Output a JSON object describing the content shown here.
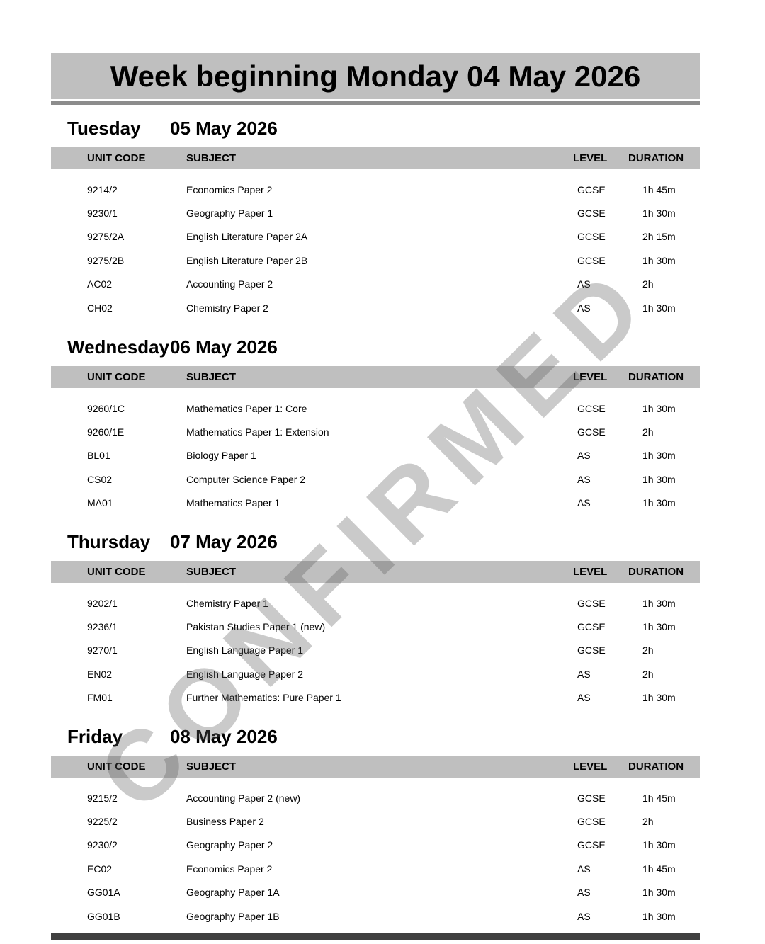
{
  "page": {
    "title": "Week beginning Monday 04 May 2026"
  },
  "watermark": {
    "text": "CONFIRMED"
  },
  "columns": {
    "unit_code": "UNIT CODE",
    "subject": "SUBJECT",
    "level": "LEVEL",
    "duration": "DURATION"
  },
  "colors": {
    "header_bar_gray": "#bfbfbf",
    "title_divider_gray": "#8c8c8c",
    "bottom_bar_gray": "#404040",
    "text": "#000000",
    "watermark": "rgba(90,90,90,0.32)"
  },
  "sections": [
    {
      "day": "Tuesday",
      "date": "05 May 2026",
      "rows": [
        {
          "unit_code": "9214/2",
          "subject": "Economics Paper 2",
          "level": "GCSE",
          "duration": "1h 45m"
        },
        {
          "unit_code": "9230/1",
          "subject": "Geography Paper 1",
          "level": "GCSE",
          "duration": "1h 30m"
        },
        {
          "unit_code": "9275/2A",
          "subject": "English Literature Paper 2A",
          "level": "GCSE",
          "duration": "2h 15m"
        },
        {
          "unit_code": "9275/2B",
          "subject": "English Literature Paper 2B",
          "level": "GCSE",
          "duration": "1h 30m"
        },
        {
          "unit_code": "AC02",
          "subject": "Accounting Paper 2",
          "level": "AS",
          "duration": "2h"
        },
        {
          "unit_code": "CH02",
          "subject": "Chemistry Paper 2",
          "level": "AS",
          "duration": "1h 30m"
        }
      ]
    },
    {
      "day": "Wednesday",
      "date": "06 May 2026",
      "rows": [
        {
          "unit_code": "9260/1C",
          "subject": "Mathematics Paper 1: Core",
          "level": "GCSE",
          "duration": "1h 30m"
        },
        {
          "unit_code": "9260/1E",
          "subject": "Mathematics Paper 1: Extension",
          "level": "GCSE",
          "duration": "2h"
        },
        {
          "unit_code": "BL01",
          "subject": "Biology Paper 1",
          "level": "AS",
          "duration": "1h 30m"
        },
        {
          "unit_code": "CS02",
          "subject": "Computer Science Paper 2",
          "level": "AS",
          "duration": "1h 30m"
        },
        {
          "unit_code": "MA01",
          "subject": "Mathematics Paper 1",
          "level": "AS",
          "duration": "1h 30m"
        }
      ]
    },
    {
      "day": "Thursday",
      "date": "07 May 2026",
      "rows": [
        {
          "unit_code": "9202/1",
          "subject": "Chemistry Paper 1",
          "level": "GCSE",
          "duration": "1h 30m"
        },
        {
          "unit_code": "9236/1",
          "subject": "Pakistan Studies Paper 1 (new)",
          "level": "GCSE",
          "duration": "1h 30m"
        },
        {
          "unit_code": "9270/1",
          "subject": "English Language Paper 1",
          "level": "GCSE",
          "duration": "2h"
        },
        {
          "unit_code": "EN02",
          "subject": "English Language Paper 2",
          "level": "AS",
          "duration": "2h"
        },
        {
          "unit_code": "FM01",
          "subject": "Further Mathematics: Pure Paper 1",
          "level": "AS",
          "duration": "1h 30m"
        }
      ]
    },
    {
      "day": "Friday",
      "date": "08 May 2026",
      "rows": [
        {
          "unit_code": "9215/2",
          "subject": "Accounting Paper 2 (new)",
          "level": "GCSE",
          "duration": "1h 45m"
        },
        {
          "unit_code": "9225/2",
          "subject": "Business Paper 2",
          "level": "GCSE",
          "duration": "2h"
        },
        {
          "unit_code": "9230/2",
          "subject": "Geography Paper 2",
          "level": "GCSE",
          "duration": "1h 30m"
        },
        {
          "unit_code": "EC02",
          "subject": "Economics Paper 2",
          "level": "AS",
          "duration": "1h 45m"
        },
        {
          "unit_code": "GG01A",
          "subject": "Geography Paper 1A",
          "level": "AS",
          "duration": "1h 30m"
        },
        {
          "unit_code": "GG01B",
          "subject": "Geography Paper 1B",
          "level": "AS",
          "duration": "1h 30m"
        }
      ]
    }
  ]
}
